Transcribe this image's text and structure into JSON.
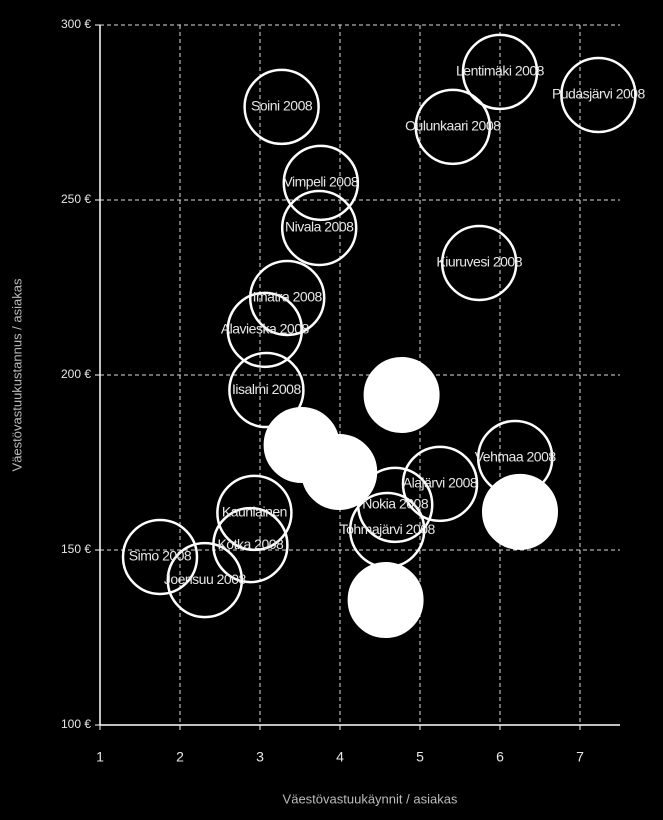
{
  "chart_data": {
    "type": "scatter",
    "x_label": "Väestövastuukäynnit  / asiakas",
    "y_label": "Väestövastuukustannus  / asiakas",
    "xlim": [
      1,
      7.5
    ],
    "xticks": [
      1,
      2,
      3,
      4,
      5,
      6,
      7
    ],
    "ylim": [
      100,
      300
    ],
    "yticks": [
      {
        "value": 100,
        "label": "100 €"
      },
      {
        "value": 150,
        "label": "150 €"
      },
      {
        "value": 200,
        "label": "200 €"
      },
      {
        "value": 250,
        "label": "250 €"
      },
      {
        "value": 300,
        "label": "300 €"
      }
    ],
    "grid": true,
    "color": "#ffffff",
    "background": "#000000",
    "point_labels": [
      "Lentimäki 2008",
      "Pudasjärvi 2008",
      "Oulunkaari 2008",
      "Soini 2008",
      "Vimpeli 2008",
      "Nivala 2008",
      "Kiuruvesi 2008",
      "Imatra 2008",
      "Alavieska 2008",
      "Iisalmi 2008",
      "Vehmaa 2008",
      "Alajärvi 2008",
      "Kauniainen",
      "Nokia 2008",
      "Tohmajärvi 2008",
      "Simo 2008",
      "Kotka 2008",
      "Joensuu 2008",
      null,
      null,
      null,
      null,
      null
    ],
    "x": [
      6.0,
      7.23,
      5.41,
      3.27,
      3.76,
      3.74,
      5.74,
      3.34,
      3.06,
      3.08,
      6.19,
      5.25,
      2.93,
      4.69,
      4.59,
      1.75,
      2.88,
      2.31,
      4.77,
      3.52,
      3.99,
      4.57,
      6.25
    ],
    "values": [
      286.6,
      280,
      270.9,
      276.6,
      254.9,
      242,
      232,
      222,
      212.9,
      195.7,
      176.3,
      168.9,
      160.6,
      162.9,
      155.7,
      148,
      151.4,
      141.4,
      194.3,
      180,
      172.3,
      135.7,
      160.9
    ],
    "filled": [
      false,
      false,
      false,
      false,
      false,
      false,
      false,
      false,
      false,
      false,
      false,
      false,
      false,
      false,
      false,
      false,
      false,
      false,
      true,
      true,
      true,
      true,
      true
    ]
  }
}
